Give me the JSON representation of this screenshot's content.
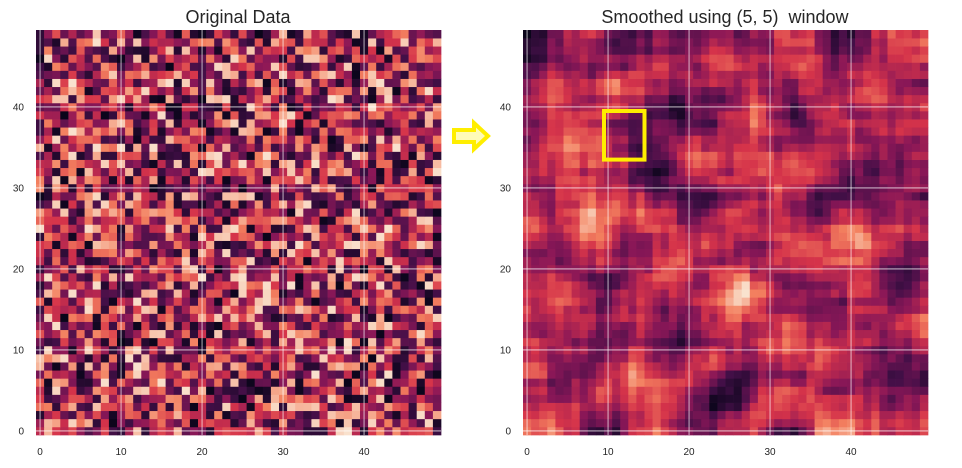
{
  "chart_data": [
    {
      "type": "heatmap",
      "title": "Original Data",
      "xlabel": "",
      "ylabel": "",
      "grid_size": [
        50,
        50
      ],
      "xlim": [
        0,
        49
      ],
      "ylim": [
        0,
        49
      ],
      "xticks": [
        0,
        10,
        20,
        30,
        40
      ],
      "yticks": [
        0,
        10,
        20,
        30,
        40
      ],
      "x_tick_labels": [
        "0",
        "10",
        "20",
        "30",
        "40"
      ],
      "y_tick_labels": [
        "0",
        "10",
        "20",
        "30",
        "40"
      ],
      "colormap": "rocket",
      "value_range": [
        0,
        1
      ],
      "grid": true,
      "values_description": "random noise"
    },
    {
      "type": "heatmap",
      "title": "Smoothed using (5, 5)  window",
      "xlabel": "",
      "ylabel": "",
      "grid_size": [
        50,
        50
      ],
      "xlim": [
        0,
        49
      ],
      "ylim": [
        0,
        49
      ],
      "xticks": [
        0,
        10,
        20,
        30,
        40
      ],
      "yticks": [
        0,
        10,
        20,
        30,
        40
      ],
      "x_tick_labels": [
        "0",
        "10",
        "20",
        "30",
        "40"
      ],
      "y_tick_labels": [
        "0",
        "10",
        "20",
        "30",
        "40"
      ],
      "colormap": "rocket",
      "value_range": [
        0,
        1
      ],
      "grid": true,
      "window": [
        5,
        5
      ],
      "highlight_window": {
        "x_range": [
          10,
          15
        ],
        "y_range": [
          34,
          40
        ],
        "color": "#ffee00"
      }
    }
  ],
  "arrow": {
    "color": "#ffee00",
    "icon": "right-arrow-outline"
  }
}
